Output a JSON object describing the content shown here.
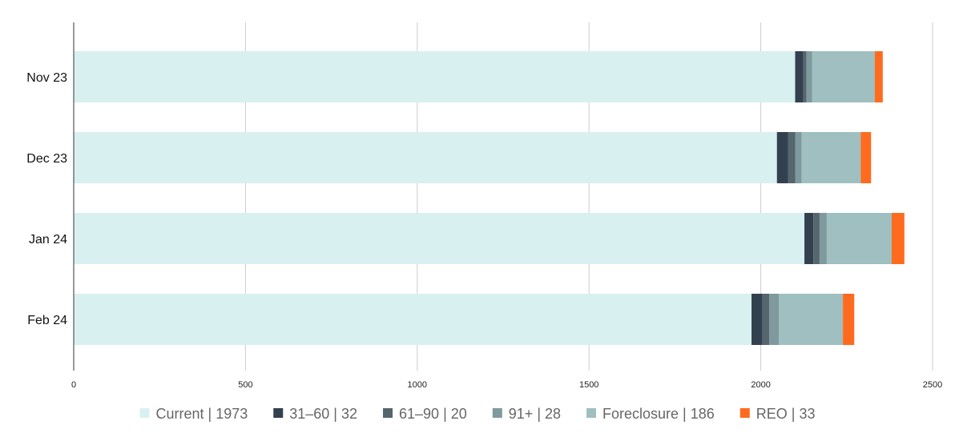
{
  "chart_data": {
    "type": "bar",
    "orientation": "horizontal",
    "stacked": true,
    "categories": [
      "Nov 23",
      "Dec 23",
      "Jan 24",
      "Feb 24"
    ],
    "series": [
      {
        "name": "Current | 1973",
        "color": "#d8f0f0",
        "values": [
          2100,
          2047,
          2127,
          1973
        ]
      },
      {
        "name": "31–60 | 32",
        "color": "#334050",
        "values": [
          24,
          32,
          26,
          32
        ]
      },
      {
        "name": "61–90 | 20",
        "color": "#55666d",
        "values": [
          9,
          21,
          18,
          20
        ]
      },
      {
        "name": "91+ | 28",
        "color": "#7f9a9e",
        "values": [
          16,
          19,
          21,
          28
        ]
      },
      {
        "name": "Foreclosure | 186",
        "color": "#9fbfc0",
        "values": [
          183,
          172,
          189,
          186
        ]
      },
      {
        "name": "REO | 33",
        "color": "#ff6b1e",
        "values": [
          23,
          30,
          37,
          33
        ]
      }
    ],
    "xlim": [
      0,
      2500
    ],
    "xticks": [
      0,
      500,
      1000,
      1500,
      2000,
      2500
    ],
    "grid": "vertical",
    "legend": "bottom"
  }
}
